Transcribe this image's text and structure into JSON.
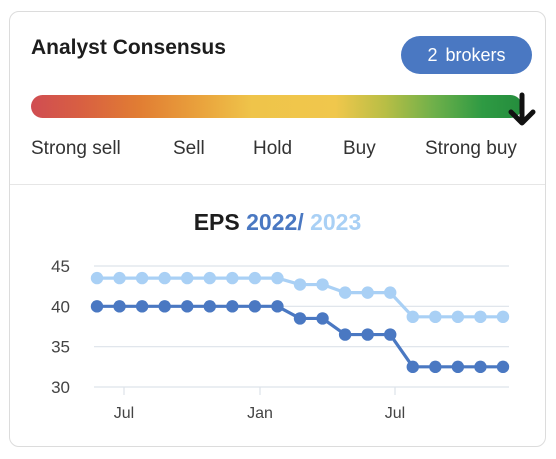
{
  "card": {
    "title": "Analyst Consensus",
    "brokers_count": "2",
    "brokers_label": "brokers"
  },
  "consensus": {
    "labels": [
      "Strong sell",
      "Sell",
      "Hold",
      "Buy",
      "Strong buy"
    ],
    "current": "Strong buy",
    "indicator_icon": "arrow-down-icon"
  },
  "eps": {
    "title_prefix": "EPS",
    "year_1": "2022",
    "separator": "/",
    "year_2": "2023"
  },
  "colors": {
    "brand_blue": "#4a78c2",
    "series_2022": "#4a78c2",
    "series_2023": "#a9d0f5",
    "gridline": "#dde3ea"
  },
  "chart_data": {
    "type": "line",
    "title": "EPS 2022 / 2023",
    "xlabel": "",
    "ylabel": "",
    "ylim": [
      30,
      45
    ],
    "yticks": [
      30,
      35,
      40,
      45
    ],
    "xtick_labels": [
      "Jul",
      "Jan",
      "Jul"
    ],
    "grid": true,
    "series": [
      {
        "name": "2023",
        "color": "#a9d0f5",
        "values": [
          43.5,
          43.5,
          43.5,
          43.5,
          43.5,
          43.5,
          43.5,
          43.5,
          43.5,
          42.7,
          42.7,
          41.7,
          41.7,
          41.7,
          38.7,
          38.7,
          38.7,
          38.7,
          38.7
        ]
      },
      {
        "name": "2022",
        "color": "#4a78c2",
        "values": [
          40,
          40,
          40,
          40,
          40,
          40,
          40,
          40,
          40,
          38.5,
          38.5,
          36.5,
          36.5,
          36.5,
          32.5,
          32.5,
          32.5,
          32.5,
          32.5
        ]
      }
    ]
  }
}
